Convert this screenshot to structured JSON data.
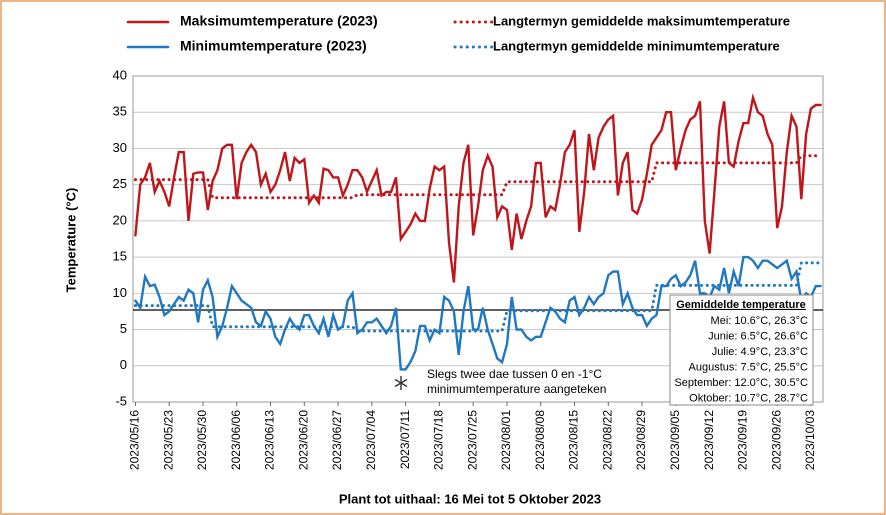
{
  "chart_data": {
    "type": "line",
    "xlabel": "Plant tot uithaal: 16 Mei tot 5 Oktober 2023",
    "ylabel": "Temperature (°C)",
    "x": [
      "2023/05/16",
      "2023/05/17",
      "2023/05/18",
      "2023/05/19",
      "2023/05/20",
      "2023/05/21",
      "2023/05/22",
      "2023/05/23",
      "2023/05/24",
      "2023/05/25",
      "2023/05/26",
      "2023/05/27",
      "2023/05/28",
      "2023/05/29",
      "2023/05/30",
      "2023/05/31",
      "2023/06/01",
      "2023/06/02",
      "2023/06/03",
      "2023/06/04",
      "2023/06/05",
      "2023/06/06",
      "2023/06/07",
      "2023/06/08",
      "2023/06/09",
      "2023/06/10",
      "2023/06/11",
      "2023/06/12",
      "2023/06/13",
      "2023/06/14",
      "2023/06/15",
      "2023/06/16",
      "2023/06/17",
      "2023/06/18",
      "2023/06/19",
      "2023/06/20",
      "2023/06/21",
      "2023/06/22",
      "2023/06/23",
      "2023/06/24",
      "2023/06/25",
      "2023/06/26",
      "2023/06/27",
      "2023/06/28",
      "2023/06/29",
      "2023/06/30",
      "2023/07/01",
      "2023/07/02",
      "2023/07/03",
      "2023/07/04",
      "2023/07/05",
      "2023/07/06",
      "2023/07/07",
      "2023/07/08",
      "2023/07/09",
      "2023/07/10",
      "2023/07/11",
      "2023/07/12",
      "2023/07/13",
      "2023/07/14",
      "2023/07/15",
      "2023/07/16",
      "2023/07/17",
      "2023/07/18",
      "2023/07/19",
      "2023/07/20",
      "2023/07/21",
      "2023/07/22",
      "2023/07/23",
      "2023/07/24",
      "2023/07/25",
      "2023/07/26",
      "2023/07/27",
      "2023/07/28",
      "2023/07/29",
      "2023/07/30",
      "2023/07/31",
      "2023/08/01",
      "2023/08/02",
      "2023/08/03",
      "2023/08/04",
      "2023/08/05",
      "2023/08/06",
      "2023/08/07",
      "2023/08/08",
      "2023/08/09",
      "2023/08/10",
      "2023/08/11",
      "2023/08/12",
      "2023/08/13",
      "2023/08/14",
      "2023/08/15",
      "2023/08/16",
      "2023/08/17",
      "2023/08/18",
      "2023/08/19",
      "2023/08/20",
      "2023/08/21",
      "2023/08/22",
      "2023/08/23",
      "2023/08/24",
      "2023/08/25",
      "2023/08/26",
      "2023/08/27",
      "2023/08/28",
      "2023/08/29",
      "2023/08/30",
      "2023/08/31",
      "2023/09/01",
      "2023/09/02",
      "2023/09/03",
      "2023/09/04",
      "2023/09/05",
      "2023/09/06",
      "2023/09/07",
      "2023/09/08",
      "2023/09/09",
      "2023/09/10",
      "2023/09/11",
      "2023/09/12",
      "2023/09/13",
      "2023/09/14",
      "2023/09/15",
      "2023/09/16",
      "2023/09/17",
      "2023/09/18",
      "2023/09/19",
      "2023/09/20",
      "2023/09/21",
      "2023/09/22",
      "2023/09/23",
      "2023/09/24",
      "2023/09/25",
      "2023/09/26",
      "2023/09/27",
      "2023/09/28",
      "2023/09/29",
      "2023/09/30",
      "2023/10/01",
      "2023/10/02",
      "2023/10/03",
      "2023/10/04",
      "2023/10/05"
    ],
    "xticks": [
      "2023/05/16",
      "2023/05/23",
      "2023/05/30",
      "2023/06/06",
      "2023/06/13",
      "2023/06/20",
      "2023/06/27",
      "2023/07/04",
      "2023/07/11",
      "2023/07/18",
      "2023/07/25",
      "2023/08/01",
      "2023/08/08",
      "2023/08/15",
      "2023/08/22",
      "2023/08/29",
      "2023/09/05",
      "2023/09/12",
      "2023/09/19",
      "2023/09/26",
      "2023/10/03"
    ],
    "ylim": [
      -5,
      40
    ],
    "yticks": [
      -5,
      0,
      5,
      10,
      15,
      20,
      25,
      30,
      35,
      40
    ],
    "grid": true,
    "hline": 7.7,
    "series": [
      {
        "name": "Maksimumtemperature (2023)",
        "color": "#c0161b",
        "dashed": false,
        "values": [
          18,
          25,
          26,
          28,
          24,
          25.5,
          24,
          22,
          26,
          29.5,
          29.5,
          20,
          26.5,
          26.7,
          26.7,
          21.5,
          25.5,
          27,
          30,
          30.5,
          30.5,
          23,
          28,
          29.5,
          30.5,
          29.5,
          25,
          26.5,
          24,
          25,
          27,
          29.5,
          25.5,
          28.7,
          28,
          28.5,
          22.5,
          23.5,
          22.5,
          27.2,
          27,
          26,
          26,
          23.5,
          25,
          27,
          27,
          26,
          24,
          25.5,
          27,
          23.5,
          24,
          24,
          26,
          17.5,
          18.5,
          19.5,
          21,
          20,
          20,
          24.5,
          27.5,
          27,
          27.5,
          17,
          11.5,
          22,
          28,
          30.5,
          18,
          22,
          27,
          29,
          27.5,
          20.5,
          22,
          21.5,
          16,
          21,
          17.5,
          20,
          22,
          28,
          28,
          20.5,
          22,
          21.5,
          25,
          29.5,
          30.5,
          32.5,
          18.5,
          24,
          32,
          27,
          31.5,
          33,
          34,
          34.5,
          23.5,
          28,
          29.5,
          21.5,
          21,
          23,
          26.5,
          30.5,
          31.5,
          32.5,
          35,
          35,
          27,
          30,
          32.5,
          34,
          34.5,
          36.5,
          20,
          15.5,
          24,
          33,
          36.5,
          28,
          27.5,
          31,
          33.5,
          33.5,
          37,
          35,
          34.5,
          32,
          30.5,
          19,
          22,
          29.5,
          34.5,
          33,
          23,
          32,
          35.5,
          36,
          36
        ]
      },
      {
        "name": "Minimumtemperature (2023)",
        "color": "#1f78c1",
        "dashed": false,
        "values": [
          9,
          8,
          12.3,
          11,
          11.2,
          9.5,
          7,
          7.5,
          8.5,
          9.5,
          9,
          10.5,
          10,
          6,
          10.5,
          11.8,
          9.5,
          4,
          5.5,
          8,
          11,
          10,
          9,
          8.5,
          8,
          6,
          5.5,
          7.5,
          6.5,
          4,
          3,
          5,
          6.5,
          5.5,
          5,
          7,
          7,
          5.5,
          4.5,
          6.5,
          4,
          7,
          5,
          5.5,
          9,
          10,
          4.5,
          5,
          6,
          6,
          6.5,
          5.5,
          4.5,
          5.5,
          8,
          -0.5,
          -0.5,
          0.5,
          2,
          5.5,
          5.5,
          3.5,
          5,
          4.5,
          9.5,
          9,
          7.5,
          1.5,
          7.5,
          11,
          5,
          5,
          8,
          5,
          3,
          1,
          0.5,
          3,
          9.5,
          5,
          5,
          4,
          3.5,
          4,
          4,
          6,
          8,
          7.5,
          6.5,
          6,
          9,
          9.5,
          7,
          8,
          9.5,
          8.5,
          9.5,
          10,
          12.5,
          13,
          13,
          8.5,
          10,
          8,
          7,
          7,
          5.5,
          6.5,
          7,
          11,
          11,
          12,
          12.5,
          11,
          11.5,
          12.5,
          14.5,
          10,
          10,
          9.5,
          11,
          10.5,
          13.5,
          10,
          13,
          11,
          15,
          15,
          14.5,
          13.5,
          14.5,
          14.5,
          14,
          13.5,
          14,
          14.5,
          12,
          13,
          9,
          10,
          9.5,
          11,
          11
        ]
      },
      {
        "name": "Langtermyn gemiddelde maksimumtemperature",
        "color": "#c0161b",
        "dashed": true,
        "values": [
          25.7,
          25.7,
          25.7,
          25.7,
          25.7,
          25.7,
          25.7,
          25.7,
          25.7,
          25.7,
          25.7,
          25.7,
          25.7,
          25.7,
          25.7,
          25.7,
          23.2,
          23.2,
          23.2,
          23.2,
          23.2,
          23.2,
          23.2,
          23.2,
          23.2,
          23.2,
          23.2,
          23.2,
          23.2,
          23.2,
          23.2,
          23.2,
          23.2,
          23.2,
          23.2,
          23.2,
          23.2,
          23.2,
          23.2,
          23.2,
          23.2,
          23.2,
          23.2,
          23.2,
          23.2,
          23.2,
          23.6,
          23.6,
          23.6,
          23.6,
          23.6,
          23.6,
          23.6,
          23.6,
          23.6,
          23.6,
          23.6,
          23.6,
          23.6,
          23.6,
          23.6,
          23.6,
          23.6,
          23.6,
          23.6,
          23.6,
          23.6,
          23.6,
          23.6,
          23.6,
          23.6,
          23.6,
          23.6,
          23.6,
          23.6,
          23.6,
          23.6,
          25.4,
          25.4,
          25.4,
          25.4,
          25.4,
          25.4,
          25.4,
          25.4,
          25.4,
          25.4,
          25.4,
          25.4,
          25.4,
          25.4,
          25.4,
          25.4,
          25.4,
          25.4,
          25.4,
          25.4,
          25.4,
          25.4,
          25.4,
          25.4,
          25.4,
          25.4,
          25.4,
          25.4,
          25.4,
          25.4,
          25.4,
          28,
          28,
          28,
          28,
          28,
          28,
          28,
          28,
          28,
          28,
          28,
          28,
          28,
          28,
          28,
          28,
          28,
          28,
          28,
          28,
          28,
          28,
          28,
          28,
          28,
          28,
          28,
          28,
          28,
          28,
          29,
          29,
          29,
          29,
          29
        ]
      },
      {
        "name": "Langtermyn gemiddelde minimumtemperature",
        "color": "#1f78c1",
        "dashed": true,
        "values": [
          8.3,
          8.3,
          8.3,
          8.3,
          8.3,
          8.3,
          8.3,
          8.3,
          8.3,
          8.3,
          8.3,
          8.3,
          8.3,
          8.3,
          8.3,
          8.3,
          5.4,
          5.4,
          5.4,
          5.4,
          5.4,
          5.4,
          5.4,
          5.4,
          5.4,
          5.4,
          5.4,
          5.4,
          5.4,
          5.4,
          5.4,
          5.4,
          5.4,
          5.4,
          5.4,
          5.4,
          5.4,
          5.4,
          5.4,
          5.4,
          5.4,
          5.4,
          5.4,
          5.4,
          5.4,
          5.4,
          4.8,
          4.8,
          4.8,
          4.8,
          4.8,
          4.8,
          4.8,
          4.8,
          4.8,
          4.8,
          4.8,
          4.8,
          4.8,
          4.8,
          4.8,
          4.8,
          4.8,
          4.8,
          4.8,
          4.8,
          4.8,
          4.8,
          4.8,
          4.8,
          4.8,
          4.8,
          4.8,
          4.8,
          4.8,
          4.8,
          4.8,
          7.6,
          7.6,
          7.6,
          7.6,
          7.6,
          7.6,
          7.6,
          7.6,
          7.6,
          7.6,
          7.6,
          7.6,
          7.6,
          7.6,
          7.6,
          7.6,
          7.6,
          7.6,
          7.6,
          7.6,
          7.6,
          7.6,
          7.6,
          7.6,
          7.6,
          7.6,
          7.6,
          7.6,
          7.6,
          7.6,
          7.6,
          11.1,
          11.1,
          11.1,
          11.1,
          11.1,
          11.1,
          11.1,
          11.1,
          11.1,
          11.1,
          11.1,
          11.1,
          11.1,
          11.1,
          11.1,
          11.1,
          11.1,
          11.1,
          11.1,
          11.1,
          11.1,
          11.1,
          11.1,
          11.1,
          11.1,
          11.1,
          11.1,
          11.1,
          11.1,
          11.1,
          14.2,
          14.2,
          14.2,
          14.2,
          14.2
        ]
      }
    ],
    "annotation": [
      "Slegs twee dae tussen 0 en -1°C",
      "minimumtemperature aangeteken"
    ],
    "inset": {
      "title": "Gemiddelde temperature",
      "lines": [
        "Mei: 10.6°C, 26.3°C",
        "Junie: 6.5°C, 26.6°C",
        "Julie: 4.9°C, 23.3°C",
        "Augustus: 7.5°C, 25.5°C",
        "September: 12.0°C, 30.5°C",
        "Oktober: 10.7°C, 28.7°C"
      ]
    }
  }
}
